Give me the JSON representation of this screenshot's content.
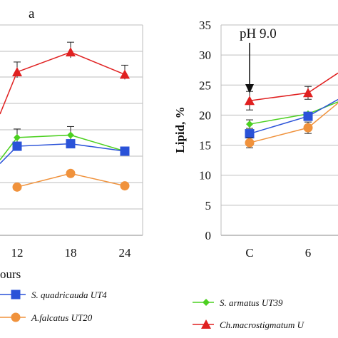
{
  "chart_data": [
    {
      "type": "line",
      "panel_label": "a",
      "categories": [
        "12",
        "18",
        "24"
      ],
      "xlabel_fragment": "ours",
      "series": [
        {
          "name": "Ch.macrostigmatum UT",
          "color": "#e02020",
          "marker": "triangle",
          "values": [
            23.2,
            24.8,
            23.0
          ]
        },
        {
          "name": "S. armatus UT39",
          "color": "#4cd020",
          "marker": "diamond",
          "values": [
            17.9,
            18.1,
            16.8
          ]
        },
        {
          "name": "S. quadricauda UT4",
          "color": "#2a52d8",
          "marker": "square",
          "values": [
            17.2,
            17.4,
            16.8
          ]
        },
        {
          "name": "A.falcatus UT20",
          "color": "#f0923c",
          "marker": "circle",
          "values": [
            13.9,
            15.0,
            14.0
          ]
        }
      ]
    },
    {
      "type": "line",
      "ylabel": "Lipid, %",
      "ylim": [
        0,
        35
      ],
      "yticks": [
        "0",
        "5",
        "10",
        "15",
        "20",
        "25",
        "30",
        "35"
      ],
      "categories": [
        "C",
        "6"
      ],
      "annotation": "pH 9.0",
      "series": [
        {
          "name": "Ch.macrostigmatum UT",
          "color": "#e02020",
          "marker": "triangle",
          "values": [
            22.4,
            23.7
          ]
        },
        {
          "name": "S. armatus UT39",
          "color": "#4cd020",
          "marker": "diamond",
          "values": [
            18.5,
            20.2
          ]
        },
        {
          "name": "S. quadricauda UT4",
          "color": "#2a52d8",
          "marker": "square",
          "values": [
            16.9,
            19.8
          ]
        },
        {
          "name": "A.falcatus UT20",
          "color": "#f0923c",
          "marker": "circle",
          "values": [
            15.4,
            17.9
          ]
        }
      ]
    }
  ],
  "legend": {
    "left": [
      "S. quadricauda UT4",
      "A.falcatus UT20"
    ],
    "right": [
      "S. armatus UT39",
      "Ch.macrostigmatum U"
    ]
  }
}
